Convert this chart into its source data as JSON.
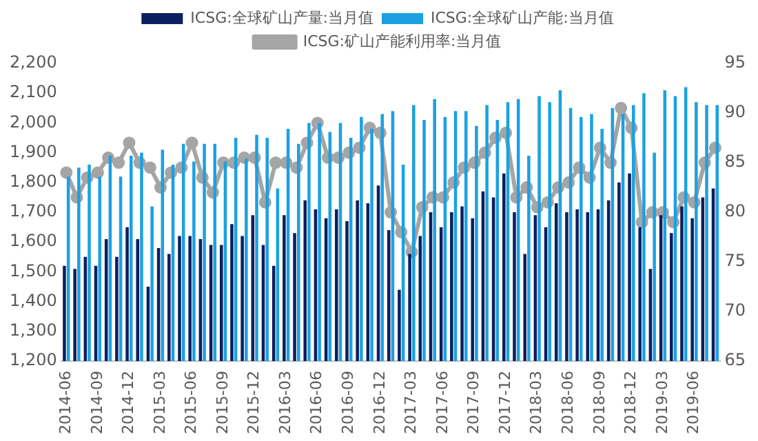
{
  "chart_data": {
    "type": "bar",
    "legend": "top",
    "grid": false,
    "marker": "circle",
    "categories": [
      "2014-06",
      null,
      null,
      "2014-09",
      null,
      null,
      "2014-12",
      null,
      null,
      "2015-03",
      null,
      null,
      "2015-06",
      null,
      null,
      "2015-09",
      null,
      null,
      "2015-12",
      null,
      null,
      "2016-03",
      null,
      null,
      "2016-06",
      null,
      null,
      "2016-09",
      null,
      null,
      "2016-12",
      null,
      null,
      "2017-03",
      null,
      null,
      "2017-06",
      null,
      null,
      "2017-09",
      null,
      null,
      "2017-12",
      null,
      null,
      "2018-03",
      null,
      null,
      "2018-06",
      null,
      null,
      "2018-09",
      null,
      null,
      "2018-12",
      null,
      null,
      "2019-03",
      null,
      null,
      "2019-06",
      null,
      null
    ],
    "ylim": [
      1200,
      2200
    ],
    "yticks": [
      {
        "value": 1200,
        "label": "1,200"
      },
      {
        "value": 1300,
        "label": "1,300"
      },
      {
        "value": 1400,
        "label": "1,400"
      },
      {
        "value": 1500,
        "label": "1,500"
      },
      {
        "value": 1600,
        "label": "1,600"
      },
      {
        "value": 1700,
        "label": "1,700"
      },
      {
        "value": 1800,
        "label": "1,800"
      },
      {
        "value": 1900,
        "label": "1,900"
      },
      {
        "value": 2000,
        "label": "2,000"
      },
      {
        "value": 2100,
        "label": "2,100"
      },
      {
        "value": 2200,
        "label": "2,200"
      }
    ],
    "y2lim": [
      65,
      95
    ],
    "y2ticks": [
      65,
      70,
      75,
      80,
      85,
      90,
      95
    ],
    "series": [
      {
        "name": "ICSG:全球矿山产量:当月值",
        "color": "#0c1f5e",
        "values": [
          1520,
          1510,
          1550,
          1520,
          1610,
          1550,
          1650,
          1610,
          1450,
          1580,
          1560,
          1620,
          1620,
          1610,
          1590,
          1590,
          1660,
          1620,
          1690,
          1590,
          1520,
          1690,
          1630,
          1740,
          1710,
          1680,
          1710,
          1670,
          1740,
          1730,
          1790,
          1640,
          1440,
          1560,
          1620,
          1700,
          1650,
          1700,
          1720,
          1680,
          1770,
          1750,
          1830,
          1700,
          1560,
          1690,
          1650,
          1730,
          1700,
          1710,
          1700,
          1710,
          1740,
          1800,
          1830,
          1650,
          1510,
          1690,
          1630,
          1720,
          1680,
          1750,
          1780
        ]
      },
      {
        "name": "ICSG:全球矿山产能:当月值",
        "color": "#1ba1e2",
        "values": [
          1820,
          1850,
          1860,
          1820,
          1890,
          1820,
          1890,
          1900,
          1720,
          1910,
          1860,
          1930,
          1870,
          1930,
          1930,
          1870,
          1950,
          1880,
          1960,
          1950,
          1780,
          1980,
          1930,
          2000,
          2000,
          1970,
          2000,
          1950,
          2020,
          1980,
          2030,
          2040,
          1860,
          2060,
          2010,
          2080,
          2020,
          2040,
          2040,
          1990,
          2060,
          2010,
          2070,
          2080,
          1890,
          2090,
          2070,
          2110,
          2050,
          2020,
          2030,
          1980,
          2050,
          2030,
          2060,
          2100,
          1900,
          2110,
          2090,
          2120,
          2070,
          2060,
          2060
        ]
      },
      {
        "name": "ICSG:矿山产能利用率:当月值",
        "color": "#a5a5a5",
        "type": "line",
        "axis": "y2",
        "values": [
          84,
          81.5,
          83.5,
          84,
          85.5,
          85,
          87,
          85,
          84.5,
          82.5,
          84,
          84.5,
          87,
          83.5,
          82,
          85,
          85,
          85.5,
          85.5,
          81,
          85,
          85,
          84.5,
          87,
          89,
          85.5,
          85.5,
          86,
          86.5,
          88.5,
          88,
          80,
          78,
          76,
          80.5,
          81.5,
          81.5,
          83,
          84.5,
          85,
          86,
          87.5,
          88,
          81.5,
          82.5,
          80.5,
          81,
          82.5,
          83,
          84.5,
          83.5,
          86.5,
          85,
          90.5,
          88.5,
          79,
          80,
          80,
          79,
          81.5,
          81,
          85,
          86.5
        ]
      }
    ]
  }
}
